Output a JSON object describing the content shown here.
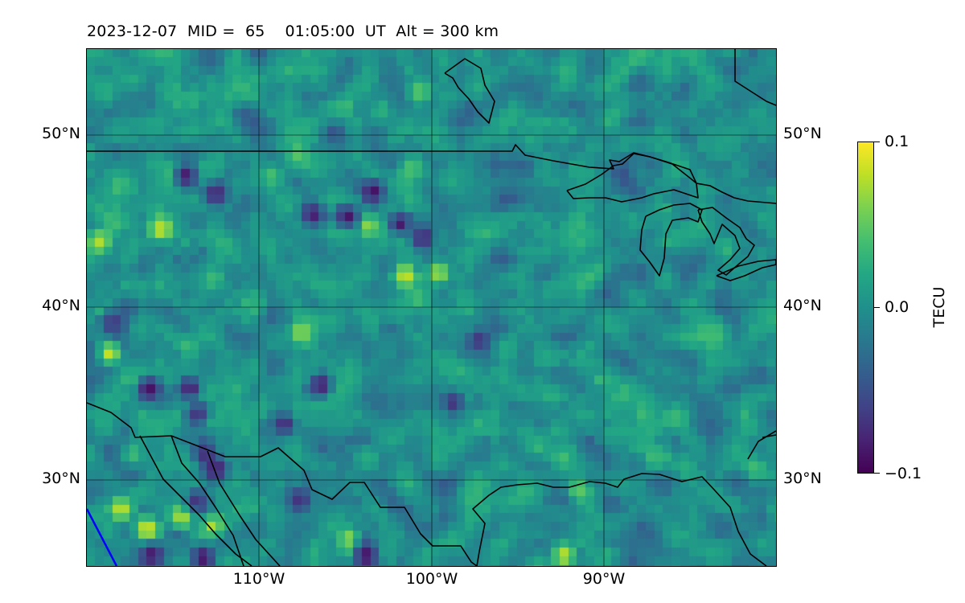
{
  "header": {
    "title": "2023-12-07  MID =  65    01:05:00  UT  Alt = 300 km"
  },
  "colorbar": {
    "label": "TECU",
    "ticks": [
      "0.1",
      "0.0",
      "−0.1"
    ],
    "min": -0.1,
    "max": 0.1,
    "colormap": "viridis"
  },
  "map": {
    "extent": {
      "lon_min": -120,
      "lon_max": -80,
      "lat_min": 25,
      "lat_max": 55
    },
    "lat_labels": [
      "50°N",
      "40°N",
      "30°N"
    ],
    "lon_labels": [
      "110°W",
      "100°W",
      "90°W"
    ],
    "gridlines": true,
    "coastline_color": "#000000",
    "terminator_color": "#0000ff"
  },
  "chart_data": {
    "type": "heatmap",
    "title": "2023-12-07  MID =  65    01:05:00  UT  Alt = 300 km",
    "variable": "TEC perturbation",
    "units": "TECU",
    "clim": [
      -0.1,
      0.1
    ],
    "lat_ticks": [
      50,
      40,
      30
    ],
    "lon_ticks": [
      -110,
      -100,
      -90
    ],
    "notable_positive_spots": [
      {
        "lon": -118,
        "lat": 28.3,
        "value": 0.1
      },
      {
        "lon": -116.5,
        "lat": 27.2,
        "value": 0.1
      },
      {
        "lon": -114.5,
        "lat": 27.8,
        "value": 0.09
      },
      {
        "lon": -112.7,
        "lat": 27.3,
        "value": 0.08
      },
      {
        "lon": -118.6,
        "lat": 37.3,
        "value": 0.1
      },
      {
        "lon": -115.7,
        "lat": 44.5,
        "value": 0.1
      },
      {
        "lon": -101.5,
        "lat": 41.8,
        "value": 0.1
      },
      {
        "lon": -99.6,
        "lat": 42.0,
        "value": 0.09
      },
      {
        "lon": -103.6,
        "lat": 44.7,
        "value": 0.08
      },
      {
        "lon": -107.5,
        "lat": 38.5,
        "value": 0.08
      },
      {
        "lon": -104.8,
        "lat": 26.6,
        "value": 0.08
      },
      {
        "lon": -92.3,
        "lat": 25.6,
        "value": 0.1
      },
      {
        "lon": -91.5,
        "lat": 29.5,
        "value": 0.07
      },
      {
        "lon": -119.3,
        "lat": 43.8,
        "value": 0.08
      },
      {
        "lon": -100.7,
        "lat": 52.5,
        "value": 0.06
      }
    ],
    "notable_negative_spots": [
      {
        "lon": -116.2,
        "lat": 25.6,
        "value": -0.1
      },
      {
        "lon": -113.2,
        "lat": 25.5,
        "value": -0.1
      },
      {
        "lon": -103.8,
        "lat": 25.6,
        "value": -0.1
      },
      {
        "lon": -116.4,
        "lat": 35.3,
        "value": -0.1
      },
      {
        "lon": -114.0,
        "lat": 35.3,
        "value": -0.1
      },
      {
        "lon": -108.5,
        "lat": 33.2,
        "value": -0.1
      },
      {
        "lon": -106.4,
        "lat": 35.5,
        "value": -0.1
      },
      {
        "lon": -113.5,
        "lat": 33.9,
        "value": -0.09
      },
      {
        "lon": -113.2,
        "lat": 31.5,
        "value": -0.09
      },
      {
        "lon": -114.2,
        "lat": 47.6,
        "value": -0.1
      },
      {
        "lon": -112.5,
        "lat": 46.5,
        "value": -0.1
      },
      {
        "lon": -106.9,
        "lat": 45.4,
        "value": -0.1
      },
      {
        "lon": -103.4,
        "lat": 46.7,
        "value": -0.1
      },
      {
        "lon": -100.5,
        "lat": 44.0,
        "value": -0.1
      },
      {
        "lon": -104.9,
        "lat": 45.3,
        "value": -0.1
      },
      {
        "lon": -101.8,
        "lat": 44.9,
        "value": -0.1
      },
      {
        "lon": -112.5,
        "lat": 30.6,
        "value": -0.1
      },
      {
        "lon": -113.6,
        "lat": 28.8,
        "value": -0.08
      },
      {
        "lon": -107.6,
        "lat": 28.8,
        "value": -0.08
      },
      {
        "lon": -98.7,
        "lat": 34.5,
        "value": -0.09
      },
      {
        "lon": -97.2,
        "lat": 38.1,
        "value": -0.08
      },
      {
        "lon": -118.5,
        "lat": 39.1,
        "value": -0.08
      }
    ],
    "coastlines": [
      [
        [
          -120.0,
          49.0
        ],
        [
          -95.2,
          49.0
        ],
        [
          -95.0,
          49.4
        ],
        [
          -94.6,
          48.9
        ],
        [
          -93.0,
          48.6
        ],
        [
          -91.0,
          48.2
        ],
        [
          -89.5,
          48.0
        ],
        [
          -88.3,
          48.3
        ],
        [
          -85.8,
          47.9
        ],
        [
          -84.8,
          47.2
        ],
        [
          -84.2,
          46.5
        ],
        [
          -83.0,
          46.3
        ],
        [
          -82.5,
          46.2
        ],
        [
          -81.3,
          45.9
        ],
        [
          -80.0,
          45.6
        ]
      ],
      [
        [
          -120.0,
          34.5
        ],
        [
          -118.6,
          34.0
        ],
        [
          -117.3,
          33.1
        ],
        [
          -117.1,
          32.5
        ],
        [
          -115.0,
          32.6
        ],
        [
          -111.0,
          31.3
        ],
        [
          -108.2,
          31.3
        ],
        [
          -106.5,
          31.8
        ],
        [
          -104.9,
          30.6
        ],
        [
          -104.5,
          29.7
        ],
        [
          -103.2,
          29.0
        ],
        [
          -102.4,
          29.8
        ],
        [
          -101.4,
          29.8
        ],
        [
          -100.4,
          28.2
        ],
        [
          -99.5,
          27.5
        ],
        [
          -99.2,
          26.6
        ],
        [
          -97.5,
          25.9
        ],
        [
          -97.2,
          25.0
        ]
      ],
      [
        [
          -97.2,
          25.0
        ],
        [
          -97.3,
          26.2
        ],
        [
          -97.7,
          27.3
        ],
        [
          -96.8,
          28.5
        ],
        [
          -95.2,
          29.1
        ],
        [
          -94.0,
          29.7
        ],
        [
          -93.0,
          29.8
        ],
        [
          -91.8,
          29.5
        ],
        [
          -90.3,
          29.3
        ],
        [
          -89.4,
          29.6
        ],
        [
          -89.1,
          30.2
        ],
        [
          -87.5,
          30.4
        ],
        [
          -86.3,
          30.4
        ],
        [
          -85.0,
          29.7
        ],
        [
          -83.9,
          30.0
        ],
        [
          -82.8,
          28.9
        ],
        [
          -82.6,
          27.6
        ],
        [
          -81.8,
          26.1
        ],
        [
          -81.0,
          25.1
        ]
      ]
    ]
  }
}
